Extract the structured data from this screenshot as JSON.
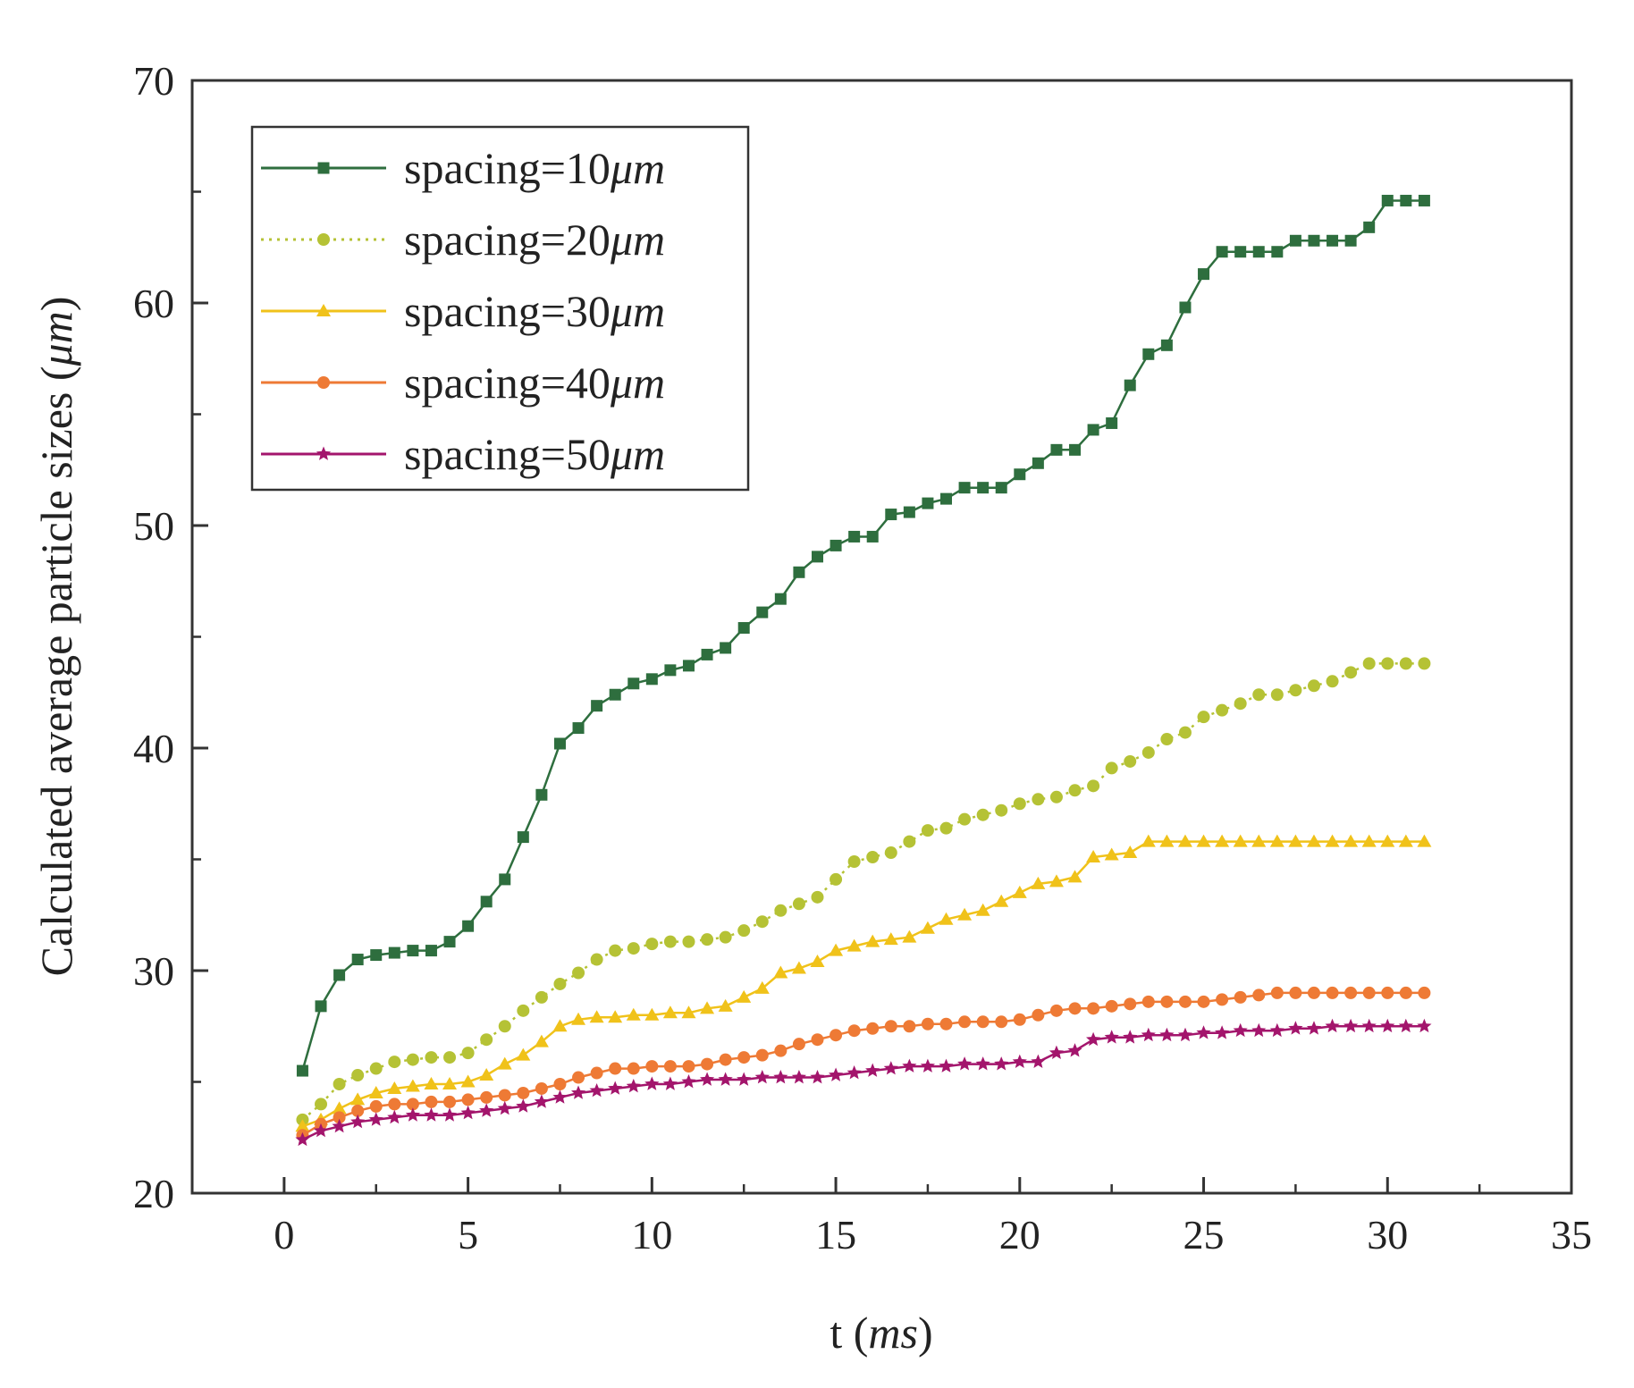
{
  "chart_data": {
    "type": "line",
    "title": "",
    "xlabel": {
      "prefix": "t (",
      "unit": "ms",
      "suffix": ")"
    },
    "ylabel": {
      "prefix": "Calculated average particle sizes (",
      "unit": "μm",
      "suffix": ")"
    },
    "xlim": [
      -2.5,
      35
    ],
    "ylim": [
      20,
      70
    ],
    "xticks": [
      0,
      5,
      10,
      15,
      20,
      25,
      30,
      35
    ],
    "yticks": [
      20,
      30,
      40,
      50,
      60,
      70
    ],
    "grid": false,
    "legend_position": "top-left",
    "x": [
      0.5,
      1.0,
      1.5,
      2.0,
      2.5,
      3.0,
      3.5,
      4.0,
      4.5,
      5.0,
      5.5,
      6.0,
      6.5,
      7.0,
      7.5,
      8.0,
      8.5,
      9.0,
      9.5,
      10.0,
      10.5,
      11.0,
      11.5,
      12.0,
      12.5,
      13.0,
      13.5,
      14.0,
      14.5,
      15.0,
      15.5,
      16.0,
      16.5,
      17.0,
      17.5,
      18.0,
      18.5,
      19.0,
      19.5,
      20.0,
      20.5,
      21.0,
      21.5,
      22.0,
      22.5,
      23.0,
      23.5,
      24.0,
      24.5,
      25.0,
      25.5,
      26.0,
      26.5,
      27.0,
      27.5,
      28.0,
      28.5,
      29.0,
      29.5,
      30.0,
      30.5,
      31.0
    ],
    "series": [
      {
        "name": "spacing=10",
        "unit": "μm",
        "color": "#2e6e3e",
        "marker": "square",
        "dashed": false,
        "values": [
          25.5,
          28.4,
          29.8,
          30.5,
          30.7,
          30.8,
          30.9,
          30.9,
          31.3,
          32.0,
          33.1,
          34.1,
          36.0,
          37.9,
          40.2,
          40.9,
          41.9,
          42.4,
          42.9,
          43.1,
          43.5,
          43.7,
          44.2,
          44.5,
          45.4,
          46.1,
          46.7,
          47.9,
          48.6,
          49.1,
          49.5,
          49.5,
          50.5,
          50.6,
          51.0,
          51.2,
          51.7,
          51.7,
          51.7,
          52.3,
          52.8,
          53.4,
          53.4,
          54.3,
          54.6,
          56.3,
          57.7,
          58.1,
          59.8,
          61.3,
          62.3,
          62.3,
          62.3,
          62.3,
          62.8,
          62.8,
          62.8,
          62.8,
          63.4,
          64.6,
          64.6,
          64.6
        ]
      },
      {
        "name": "spacing=20",
        "unit": "μm",
        "color": "#b5c235",
        "marker": "circle",
        "dashed": true,
        "values": [
          23.3,
          24.0,
          24.9,
          25.3,
          25.6,
          25.9,
          26.0,
          26.1,
          26.1,
          26.3,
          26.9,
          27.5,
          28.2,
          28.8,
          29.4,
          29.9,
          30.5,
          30.9,
          31.0,
          31.2,
          31.3,
          31.3,
          31.4,
          31.5,
          31.8,
          32.2,
          32.7,
          33.0,
          33.3,
          34.1,
          34.9,
          35.1,
          35.3,
          35.8,
          36.3,
          36.4,
          36.8,
          37.0,
          37.2,
          37.5,
          37.7,
          37.8,
          38.1,
          38.3,
          39.1,
          39.4,
          39.8,
          40.4,
          40.7,
          41.4,
          41.7,
          42.0,
          42.4,
          42.4,
          42.6,
          42.8,
          43.0,
          43.4,
          43.8,
          43.8,
          43.8,
          43.8
        ]
      },
      {
        "name": "spacing=30",
        "unit": "μm",
        "color": "#f0c21a",
        "marker": "triangle",
        "dashed": false,
        "values": [
          23.0,
          23.3,
          23.8,
          24.2,
          24.5,
          24.7,
          24.8,
          24.9,
          24.9,
          25.0,
          25.3,
          25.8,
          26.2,
          26.8,
          27.5,
          27.8,
          27.9,
          27.9,
          28.0,
          28.0,
          28.1,
          28.1,
          28.3,
          28.4,
          28.8,
          29.2,
          29.9,
          30.1,
          30.4,
          30.9,
          31.1,
          31.3,
          31.4,
          31.5,
          31.9,
          32.3,
          32.5,
          32.7,
          33.1,
          33.5,
          33.9,
          34.0,
          34.2,
          35.1,
          35.2,
          35.3,
          35.8,
          35.8,
          35.8,
          35.8,
          35.8,
          35.8,
          35.8,
          35.8,
          35.8,
          35.8,
          35.8,
          35.8,
          35.8,
          35.8,
          35.8,
          35.8
        ]
      },
      {
        "name": "spacing=40",
        "unit": "μm",
        "color": "#ee7a35",
        "marker": "circle",
        "dashed": false,
        "values": [
          22.6,
          23.1,
          23.4,
          23.7,
          23.9,
          24.0,
          24.0,
          24.1,
          24.1,
          24.2,
          24.3,
          24.4,
          24.5,
          24.7,
          24.9,
          25.2,
          25.4,
          25.6,
          25.6,
          25.7,
          25.7,
          25.7,
          25.8,
          26.0,
          26.1,
          26.2,
          26.4,
          26.7,
          26.9,
          27.1,
          27.3,
          27.4,
          27.5,
          27.5,
          27.6,
          27.6,
          27.7,
          27.7,
          27.7,
          27.8,
          28.0,
          28.2,
          28.3,
          28.3,
          28.4,
          28.5,
          28.6,
          28.6,
          28.6,
          28.6,
          28.7,
          28.8,
          28.9,
          29.0,
          29.0,
          29.0,
          29.0,
          29.0,
          29.0,
          29.0,
          29.0,
          29.0
        ]
      },
      {
        "name": "spacing=50",
        "unit": "μm",
        "color": "#a3156c",
        "marker": "star",
        "dashed": false,
        "values": [
          22.4,
          22.8,
          23.0,
          23.2,
          23.3,
          23.4,
          23.5,
          23.5,
          23.5,
          23.6,
          23.7,
          23.8,
          23.9,
          24.1,
          24.3,
          24.5,
          24.6,
          24.7,
          24.8,
          24.9,
          24.9,
          25.0,
          25.1,
          25.1,
          25.1,
          25.2,
          25.2,
          25.2,
          25.2,
          25.3,
          25.4,
          25.5,
          25.6,
          25.7,
          25.7,
          25.7,
          25.8,
          25.8,
          25.8,
          25.9,
          25.9,
          26.3,
          26.4,
          26.9,
          27.0,
          27.0,
          27.1,
          27.1,
          27.1,
          27.2,
          27.2,
          27.3,
          27.3,
          27.3,
          27.4,
          27.4,
          27.5,
          27.5,
          27.5,
          27.5,
          27.5,
          27.5
        ]
      }
    ]
  }
}
